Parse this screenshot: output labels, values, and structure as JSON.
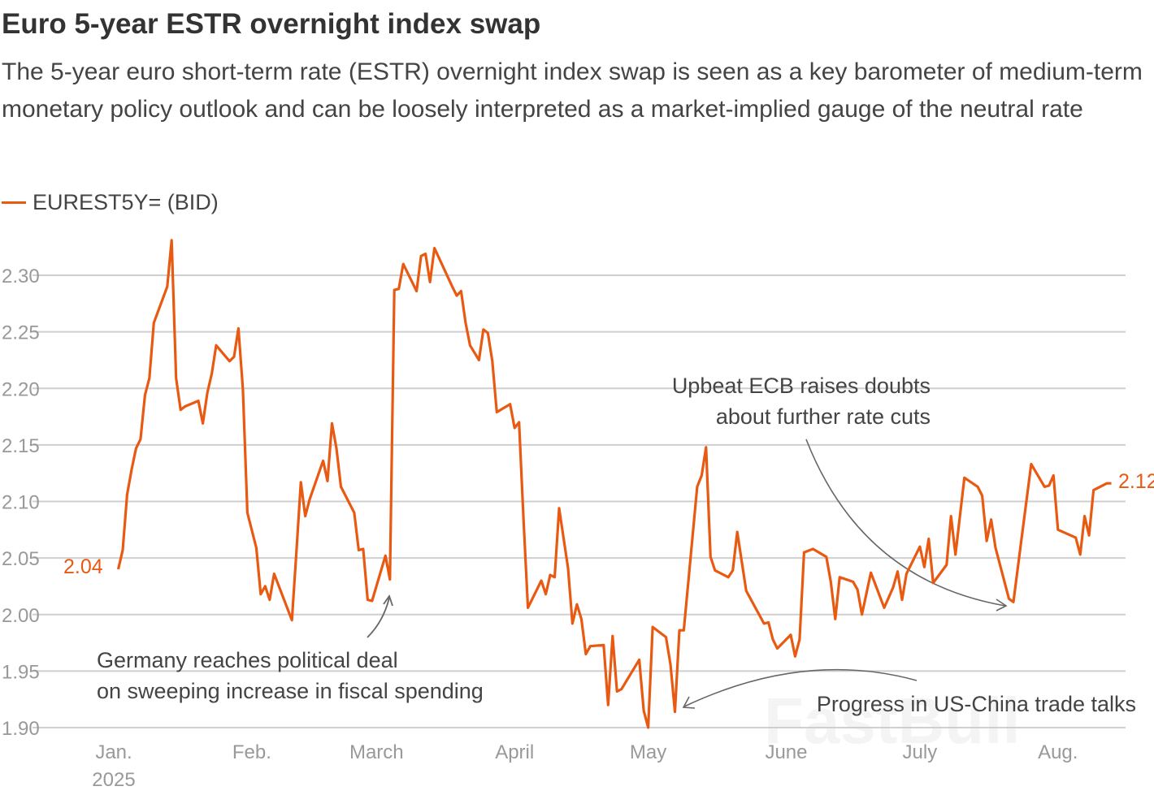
{
  "header": {
    "title": "Euro 5-year ESTR overnight index swap",
    "subtitle": "The 5-year euro short-term rate (ESTR) overnight index swap is seen as a key barometer of medium-term monetary policy outlook and can be loosely interpreted as a market-implied gauge of the neutral rate"
  },
  "watermark": "FastBull",
  "chart_data": {
    "type": "line",
    "title": "Euro 5-year ESTR overnight index swap",
    "xlabel": "",
    "ylabel": "",
    "ylim": [
      1.9,
      2.3
    ],
    "yticks": [
      1.9,
      1.95,
      2.0,
      2.05,
      2.1,
      2.15,
      2.2,
      2.25,
      2.3
    ],
    "ytick_labels": [
      "1.90",
      "1.95",
      "2.00",
      "2.05",
      "2.10",
      "2.15",
      "2.20",
      "2.25",
      "2.30"
    ],
    "xticks": [
      {
        "date": "2025-01-01",
        "label": "Jan.",
        "sublabel": "2025"
      },
      {
        "date": "2025-02-01",
        "label": "Feb."
      },
      {
        "date": "2025-03-01",
        "label": "March"
      },
      {
        "date": "2025-04-01",
        "label": "April"
      },
      {
        "date": "2025-05-01",
        "label": "May"
      },
      {
        "date": "2025-06-01",
        "label": "June"
      },
      {
        "date": "2025-07-01",
        "label": "July"
      },
      {
        "date": "2025-08-01",
        "label": "Aug."
      }
    ],
    "grid": true,
    "legend_position": "top-left",
    "color": "#e85a12",
    "series": [
      {
        "name": "EUREST5Y= (BID)",
        "points": [
          [
            "2025-01-02",
            2.04
          ],
          [
            "2025-01-03",
            2.057
          ],
          [
            "2025-01-04",
            2.106
          ],
          [
            "2025-01-05",
            2.128
          ],
          [
            "2025-01-06",
            2.147
          ],
          [
            "2025-01-07",
            2.155
          ],
          [
            "2025-01-08",
            2.194
          ],
          [
            "2025-01-09",
            2.209
          ],
          [
            "2025-01-10",
            2.258
          ],
          [
            "2025-01-13",
            2.29
          ],
          [
            "2025-01-14",
            2.331
          ],
          [
            "2025-01-15",
            2.209
          ],
          [
            "2025-01-16",
            2.181
          ],
          [
            "2025-01-17",
            2.184
          ],
          [
            "2025-01-20",
            2.189
          ],
          [
            "2025-01-21",
            2.169
          ],
          [
            "2025-01-22",
            2.196
          ],
          [
            "2025-01-23",
            2.213
          ],
          [
            "2025-01-24",
            2.238
          ],
          [
            "2025-01-27",
            2.224
          ],
          [
            "2025-01-28",
            2.228
          ],
          [
            "2025-01-29",
            2.253
          ],
          [
            "2025-01-30",
            2.199
          ],
          [
            "2025-01-31",
            2.09
          ],
          [
            "2025-02-02",
            2.059
          ],
          [
            "2025-02-03",
            2.018
          ],
          [
            "2025-02-04",
            2.025
          ],
          [
            "2025-02-05",
            2.013
          ],
          [
            "2025-02-06",
            2.036
          ],
          [
            "2025-02-10",
            1.995
          ],
          [
            "2025-02-11",
            2.055
          ],
          [
            "2025-02-12",
            2.117
          ],
          [
            "2025-02-13",
            2.087
          ],
          [
            "2025-02-14",
            2.102
          ],
          [
            "2025-02-17",
            2.136
          ],
          [
            "2025-02-18",
            2.118
          ],
          [
            "2025-02-19",
            2.169
          ],
          [
            "2025-02-20",
            2.147
          ],
          [
            "2025-02-21",
            2.113
          ],
          [
            "2025-02-24",
            2.09
          ],
          [
            "2025-02-25",
            2.057
          ],
          [
            "2025-02-26",
            2.058
          ],
          [
            "2025-02-27",
            2.013
          ],
          [
            "2025-02-28",
            2.012
          ],
          [
            "2025-03-03",
            2.052
          ],
          [
            "2025-03-04",
            2.031
          ],
          [
            "2025-03-05",
            2.287
          ],
          [
            "2025-03-06",
            2.288
          ],
          [
            "2025-03-07",
            2.31
          ],
          [
            "2025-03-10",
            2.286
          ],
          [
            "2025-03-11",
            2.317
          ],
          [
            "2025-03-12",
            2.319
          ],
          [
            "2025-03-13",
            2.294
          ],
          [
            "2025-03-14",
            2.324
          ],
          [
            "2025-03-18",
            2.29
          ],
          [
            "2025-03-19",
            2.282
          ],
          [
            "2025-03-20",
            2.286
          ],
          [
            "2025-03-21",
            2.258
          ],
          [
            "2025-03-22",
            2.238
          ],
          [
            "2025-03-24",
            2.225
          ],
          [
            "2025-03-25",
            2.252
          ],
          [
            "2025-03-26",
            2.249
          ],
          [
            "2025-03-27",
            2.224
          ],
          [
            "2025-03-28",
            2.179
          ],
          [
            "2025-03-31",
            2.186
          ],
          [
            "2025-04-01",
            2.165
          ],
          [
            "2025-04-02",
            2.17
          ],
          [
            "2025-04-03",
            2.084
          ],
          [
            "2025-04-04",
            2.006
          ],
          [
            "2025-04-07",
            2.03
          ],
          [
            "2025-04-08",
            2.018
          ],
          [
            "2025-04-09",
            2.035
          ],
          [
            "2025-04-10",
            2.033
          ],
          [
            "2025-04-11",
            2.094
          ],
          [
            "2025-04-13",
            2.041
          ],
          [
            "2025-04-14",
            1.992
          ],
          [
            "2025-04-15",
            2.009
          ],
          [
            "2025-04-16",
            1.996
          ],
          [
            "2025-04-17",
            1.965
          ],
          [
            "2025-04-18",
            1.972
          ],
          [
            "2025-04-21",
            1.973
          ],
          [
            "2025-04-22",
            1.92
          ],
          [
            "2025-04-23",
            1.981
          ],
          [
            "2025-04-24",
            1.932
          ],
          [
            "2025-04-25",
            1.934
          ],
          [
            "2025-04-29",
            1.96
          ],
          [
            "2025-04-30",
            1.915
          ],
          [
            "2025-05-01",
            1.9
          ],
          [
            "2025-05-02",
            1.989
          ],
          [
            "2025-05-05",
            1.98
          ],
          [
            "2025-05-06",
            1.956
          ],
          [
            "2025-05-07",
            1.914
          ],
          [
            "2025-05-08",
            1.986
          ],
          [
            "2025-05-09",
            1.986
          ],
          [
            "2025-05-12",
            2.113
          ],
          [
            "2025-05-13",
            2.123
          ],
          [
            "2025-05-14",
            2.148
          ],
          [
            "2025-05-15",
            2.051
          ],
          [
            "2025-05-16",
            2.039
          ],
          [
            "2025-05-19",
            2.033
          ],
          [
            "2025-05-20",
            2.039
          ],
          [
            "2025-05-21",
            2.073
          ],
          [
            "2025-05-23",
            2.021
          ],
          [
            "2025-05-27",
            1.992
          ],
          [
            "2025-05-28",
            1.993
          ],
          [
            "2025-05-29",
            1.978
          ],
          [
            "2025-05-30",
            1.97
          ],
          [
            "2025-06-02",
            1.982
          ],
          [
            "2025-06-03",
            1.963
          ],
          [
            "2025-06-04",
            1.978
          ],
          [
            "2025-06-05",
            2.055
          ],
          [
            "2025-06-07",
            2.058
          ],
          [
            "2025-06-10",
            2.051
          ],
          [
            "2025-06-11",
            2.029
          ],
          [
            "2025-06-12",
            1.996
          ],
          [
            "2025-06-13",
            2.033
          ],
          [
            "2025-06-16",
            2.029
          ],
          [
            "2025-06-17",
            2.022
          ],
          [
            "2025-06-18",
            2.0
          ],
          [
            "2025-06-20",
            2.037
          ],
          [
            "2025-06-23",
            2.006
          ],
          [
            "2025-06-25",
            2.024
          ],
          [
            "2025-06-26",
            2.038
          ],
          [
            "2025-06-27",
            2.013
          ],
          [
            "2025-06-28",
            2.036
          ],
          [
            "2025-07-01",
            2.06
          ],
          [
            "2025-07-02",
            2.042
          ],
          [
            "2025-07-03",
            2.067
          ],
          [
            "2025-07-04",
            2.028
          ],
          [
            "2025-07-07",
            2.044
          ],
          [
            "2025-07-08",
            2.087
          ],
          [
            "2025-07-09",
            2.053
          ],
          [
            "2025-07-10",
            2.087
          ],
          [
            "2025-07-11",
            2.121
          ],
          [
            "2025-07-14",
            2.113
          ],
          [
            "2025-07-15",
            2.105
          ],
          [
            "2025-07-16",
            2.065
          ],
          [
            "2025-07-17",
            2.084
          ],
          [
            "2025-07-18",
            2.059
          ],
          [
            "2025-07-21",
            2.014
          ],
          [
            "2025-07-22",
            2.011
          ],
          [
            "2025-07-24",
            2.072
          ],
          [
            "2025-07-26",
            2.133
          ],
          [
            "2025-07-29",
            2.113
          ],
          [
            "2025-07-30",
            2.114
          ],
          [
            "2025-07-31",
            2.123
          ],
          [
            "2025-08-01",
            2.075
          ],
          [
            "2025-08-05",
            2.068
          ],
          [
            "2025-08-06",
            2.053
          ],
          [
            "2025-08-07",
            2.087
          ],
          [
            "2025-08-08",
            2.07
          ],
          [
            "2025-08-09",
            2.11
          ],
          [
            "2025-08-12",
            2.116
          ],
          [
            "2025-08-13",
            2.116
          ]
        ]
      }
    ],
    "labels": {
      "start": "2.04",
      "end": "2.12"
    },
    "annotations": [
      {
        "lines": [
          "Germany reaches political deal",
          "on sweeping increase in fiscal spending"
        ],
        "points_to": "2025-03-04"
      },
      {
        "lines": [
          "Upbeat ECB raises doubts",
          "about further rate cuts"
        ],
        "points_to": "2025-07-22"
      },
      {
        "lines": [
          "Progress in US-China trade talks"
        ],
        "points_to": "2025-05-07"
      }
    ]
  }
}
